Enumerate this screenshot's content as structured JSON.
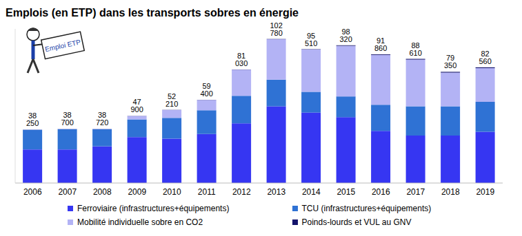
{
  "chart_data": {
    "type": "bar",
    "title": "Emplois (en ETP) dans les transports sobres en énergie",
    "badge": "Emploi ETP",
    "stacked": true,
    "tick_labels": "x",
    "grid": false,
    "legend": "bottom",
    "categories": [
      "2006",
      "2007",
      "2008",
      "2009",
      "2010",
      "2011",
      "2012",
      "2013",
      "2014",
      "2015",
      "2016",
      "2017",
      "2018",
      "2019"
    ],
    "ylim": [
      0,
      110000
    ],
    "series": [
      {
        "name": "Ferroviaire (infrastructures+équipements)",
        "color": "#3636f2",
        "values": [
          24000,
          24000,
          26200,
          32800,
          31700,
          35000,
          42600,
          54700,
          50300,
          47000,
          37200,
          33900,
          33900,
          36600
        ]
      },
      {
        "name": "TCU (infrastructures+équipements)",
        "color": "#2f72d4",
        "values": [
          14000,
          14400,
          12200,
          12600,
          14800,
          16900,
          19700,
          19100,
          14800,
          14800,
          18600,
          20800,
          20800,
          21300
        ]
      },
      {
        "name": "Mobilité individuelle sobre en CO2",
        "color": "#b3b3f5",
        "values": [
          200,
          250,
          270,
          2400,
          5600,
          7400,
          18600,
          28800,
          30200,
          36100,
          35600,
          33400,
          24100,
          24100
        ]
      },
      {
        "name": "Poinds-lourds et VUL au GNV",
        "color": "#14146b",
        "values": [
          50,
          50,
          50,
          100,
          110,
          100,
          130,
          180,
          210,
          420,
          460,
          510,
          550,
          560
        ]
      }
    ],
    "totals": [
      38250,
      38700,
      38720,
      47900,
      52210,
      59400,
      81030,
      102780,
      95510,
      98320,
      91860,
      88610,
      79350,
      82560
    ],
    "total_labels": [
      "38 250",
      "38 700",
      "38 720",
      "47 900",
      "52 210",
      "59 400",
      "81 030",
      "102 780",
      "95 510",
      "98 320",
      "91 860",
      "88 610",
      "79 350",
      "82 560"
    ]
  }
}
